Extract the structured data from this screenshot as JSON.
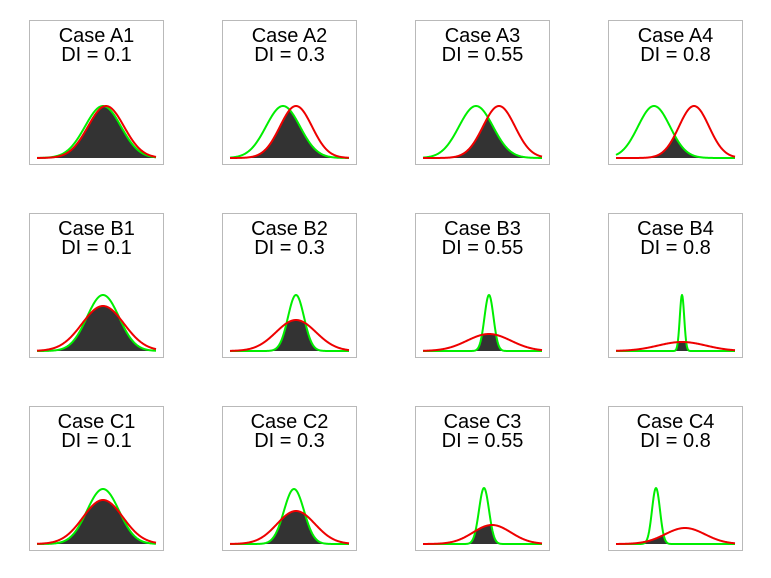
{
  "colors": {
    "curve_1": "#00ee00",
    "curve_2": "#ee0000",
    "overlap_fill": "#333333",
    "panel_border": "#b9b9b9",
    "text": "#000000"
  },
  "panels": [
    {
      "case_label": "Case A1",
      "di_label": "DI = 0.1"
    },
    {
      "case_label": "Case A2",
      "di_label": "DI = 0.3"
    },
    {
      "case_label": "Case A3",
      "di_label": "DI = 0.55"
    },
    {
      "case_label": "Case A4",
      "di_label": "DI = 0.8"
    },
    {
      "case_label": "Case B1",
      "di_label": "DI = 0.1"
    },
    {
      "case_label": "Case B2",
      "di_label": "DI = 0.3"
    },
    {
      "case_label": "Case B3",
      "di_label": "DI = 0.55"
    },
    {
      "case_label": "Case B4",
      "di_label": "DI = 0.8"
    },
    {
      "case_label": "Case C1",
      "di_label": "DI = 0.1"
    },
    {
      "case_label": "Case C2",
      "di_label": "DI = 0.3"
    },
    {
      "case_label": "Case C3",
      "di_label": "DI = 0.55"
    },
    {
      "case_label": "Case C4",
      "di_label": "DI = 0.8"
    }
  ]
}
